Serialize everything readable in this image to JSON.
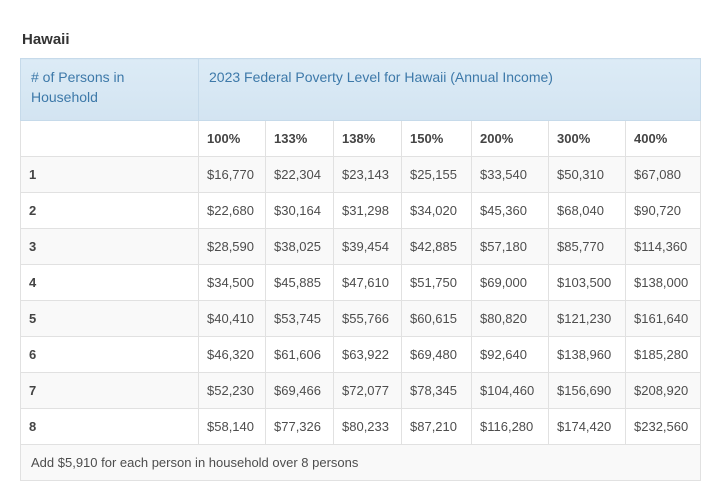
{
  "page": {
    "title": "Hawaii"
  },
  "colors": {
    "header_bg": "#d8e7f3",
    "header_text": "#3d79a9",
    "stripe_bg": "#f9f9f9",
    "border": "#e1e1e1",
    "body_text": "#4d4d4d"
  },
  "chart_data": {
    "type": "table",
    "title": "Hawaii",
    "corner_header": "# of Persons in Household",
    "span_header": "2023 Federal Poverty Level for Hawaii (Annual Income)",
    "columns": [
      "100%",
      "133%",
      "138%",
      "150%",
      "200%",
      "300%",
      "400%"
    ],
    "rows": [
      {
        "persons": "1",
        "values": [
          "$16,770",
          "$22,304",
          "$23,143",
          "$25,155",
          "$33,540",
          "$50,310",
          "$67,080"
        ]
      },
      {
        "persons": "2",
        "values": [
          "$22,680",
          "$30,164",
          "$31,298",
          "$34,020",
          "$45,360",
          "$68,040",
          "$90,720"
        ]
      },
      {
        "persons": "3",
        "values": [
          "$28,590",
          "$38,025",
          "$39,454",
          "$42,885",
          "$57,180",
          "$85,770",
          "$114,360"
        ]
      },
      {
        "persons": "4",
        "values": [
          "$34,500",
          "$45,885",
          "$47,610",
          "$51,750",
          "$69,000",
          "$103,500",
          "$138,000"
        ]
      },
      {
        "persons": "5",
        "values": [
          "$40,410",
          "$53,745",
          "$55,766",
          "$60,615",
          "$80,820",
          "$121,230",
          "$161,640"
        ]
      },
      {
        "persons": "6",
        "values": [
          "$46,320",
          "$61,606",
          "$63,922",
          "$69,480",
          "$92,640",
          "$138,960",
          "$185,280"
        ]
      },
      {
        "persons": "7",
        "values": [
          "$52,230",
          "$69,466",
          "$72,077",
          "$78,345",
          "$104,460",
          "$156,690",
          "$208,920"
        ]
      },
      {
        "persons": "8",
        "values": [
          "$58,140",
          "$77,326",
          "$80,233",
          "$87,210",
          "$116,280",
          "$174,420",
          "$232,560"
        ]
      }
    ],
    "footer_note": "Add $5,910 for each person in household over 8 persons"
  }
}
